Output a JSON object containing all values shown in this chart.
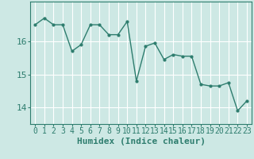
{
  "xlabel": "Humidex (Indice chaleur)",
  "ylabel": "",
  "x": [
    0,
    1,
    2,
    3,
    4,
    5,
    6,
    7,
    8,
    9,
    10,
    11,
    12,
    13,
    14,
    15,
    16,
    17,
    18,
    19,
    20,
    21,
    22,
    23
  ],
  "y": [
    16.5,
    16.7,
    16.5,
    16.5,
    15.7,
    15.9,
    16.5,
    16.5,
    16.2,
    16.2,
    16.6,
    14.8,
    15.85,
    15.95,
    15.45,
    15.6,
    15.55,
    15.55,
    14.7,
    14.65,
    14.65,
    14.75,
    13.9,
    14.2
  ],
  "line_color": "#2e7d6e",
  "marker": "o",
  "marker_size": 2,
  "line_width": 1.0,
  "background_color": "#cde8e4",
  "grid_color": "#ffffff",
  "tick_color": "#2e7d6e",
  "label_color": "#2e7d6e",
  "ylim": [
    13.5,
    17.2
  ],
  "yticks": [
    14,
    15,
    16
  ],
  "xticks": [
    0,
    1,
    2,
    3,
    4,
    5,
    6,
    7,
    8,
    9,
    10,
    11,
    12,
    13,
    14,
    15,
    16,
    17,
    18,
    19,
    20,
    21,
    22,
    23
  ],
  "font_size": 7
}
